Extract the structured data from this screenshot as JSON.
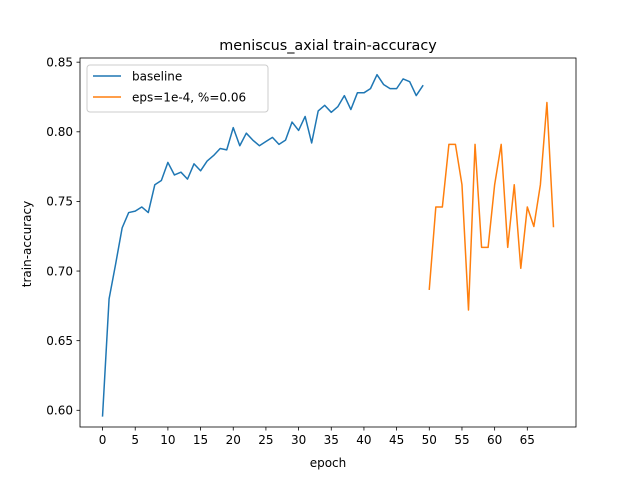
{
  "chart_data": {
    "type": "line",
    "title": "meniscus_axial train-accuracy",
    "xlabel": "epoch",
    "ylabel": "train-accuracy",
    "xlim": [
      -3.45,
      72.45
    ],
    "ylim": [
      0.588,
      0.853
    ],
    "x_ticks": [
      0,
      5,
      10,
      15,
      20,
      25,
      30,
      35,
      40,
      45,
      50,
      55,
      60,
      65
    ],
    "y_ticks": [
      0.6,
      0.65,
      0.7,
      0.75,
      0.8,
      0.85
    ],
    "y_tick_labels": [
      "0.60",
      "0.65",
      "0.70",
      "0.75",
      "0.80",
      "0.85"
    ],
    "grid": false,
    "legend_position": "top-left",
    "series": [
      {
        "name": "baseline",
        "color": "#1f77b4",
        "x": [
          0,
          1,
          2,
          3,
          4,
          5,
          6,
          7,
          8,
          9,
          10,
          11,
          12,
          13,
          14,
          15,
          16,
          17,
          18,
          19,
          20,
          21,
          22,
          23,
          24,
          25,
          26,
          27,
          28,
          29,
          30,
          31,
          32,
          33,
          34,
          35,
          36,
          37,
          38,
          39,
          40,
          41,
          42,
          43,
          44,
          45,
          46,
          47,
          48,
          49
        ],
        "values": [
          0.596,
          0.68,
          0.705,
          0.731,
          0.742,
          0.743,
          0.746,
          0.742,
          0.762,
          0.765,
          0.778,
          0.769,
          0.771,
          0.766,
          0.777,
          0.772,
          0.779,
          0.783,
          0.788,
          0.787,
          0.803,
          0.79,
          0.799,
          0.794,
          0.79,
          0.793,
          0.796,
          0.791,
          0.794,
          0.807,
          0.801,
          0.811,
          0.792,
          0.815,
          0.819,
          0.814,
          0.818,
          0.826,
          0.816,
          0.828,
          0.828,
          0.831,
          0.841,
          0.834,
          0.831,
          0.831,
          0.838,
          0.836,
          0.826,
          0.833
        ]
      },
      {
        "name": "eps=1e-4, %=0.06",
        "color": "#ff7f0e",
        "x": [
          50,
          51,
          52,
          53,
          54,
          55,
          56,
          57,
          58,
          59,
          60,
          61,
          62,
          63,
          64,
          65,
          66,
          67,
          68,
          69
        ],
        "values": [
          0.687,
          0.746,
          0.746,
          0.791,
          0.791,
          0.762,
          0.672,
          0.791,
          0.717,
          0.717,
          0.762,
          0.791,
          0.717,
          0.762,
          0.702,
          0.746,
          0.732,
          0.762,
          0.821,
          0.732
        ]
      }
    ]
  }
}
